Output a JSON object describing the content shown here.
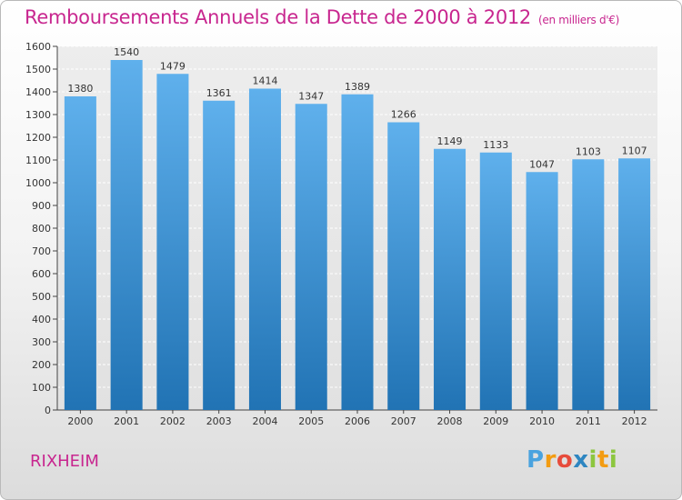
{
  "header": {
    "title": "Remboursements Annuels de la Dette de 2000 à 2012",
    "unit": "(en milliers d'€)"
  },
  "footer": {
    "commune": "RIXHEIM",
    "logo_letters": [
      "P",
      "r",
      "o",
      "x",
      "i",
      "t",
      "i"
    ]
  },
  "colors": {
    "title": "#c8268f",
    "bar_top": "#5fb0ec",
    "bar_bottom": "#2173b4",
    "logo": [
      "#4aa3df",
      "#f39c12",
      "#e74c3c",
      "#2e86c1",
      "#8cc63f",
      "#f39c12",
      "#8cc63f"
    ]
  },
  "chart_data": {
    "type": "bar",
    "title": "Remboursements Annuels de la Dette de 2000 à 2012",
    "subtitle": "(en milliers d'€)",
    "categories": [
      "2000",
      "2001",
      "2002",
      "2003",
      "2004",
      "2005",
      "2006",
      "2007",
      "2008",
      "2009",
      "2010",
      "2011",
      "2012"
    ],
    "values": [
      1380,
      1540,
      1479,
      1361,
      1414,
      1347,
      1389,
      1266,
      1149,
      1133,
      1047,
      1103,
      1107
    ],
    "xlabel": "",
    "ylabel": "",
    "ylim": [
      0,
      1600
    ],
    "yticks": [
      0,
      100,
      200,
      300,
      400,
      500,
      600,
      700,
      800,
      900,
      1000,
      1100,
      1200,
      1300,
      1400,
      1500,
      1600
    ],
    "grid": true
  }
}
